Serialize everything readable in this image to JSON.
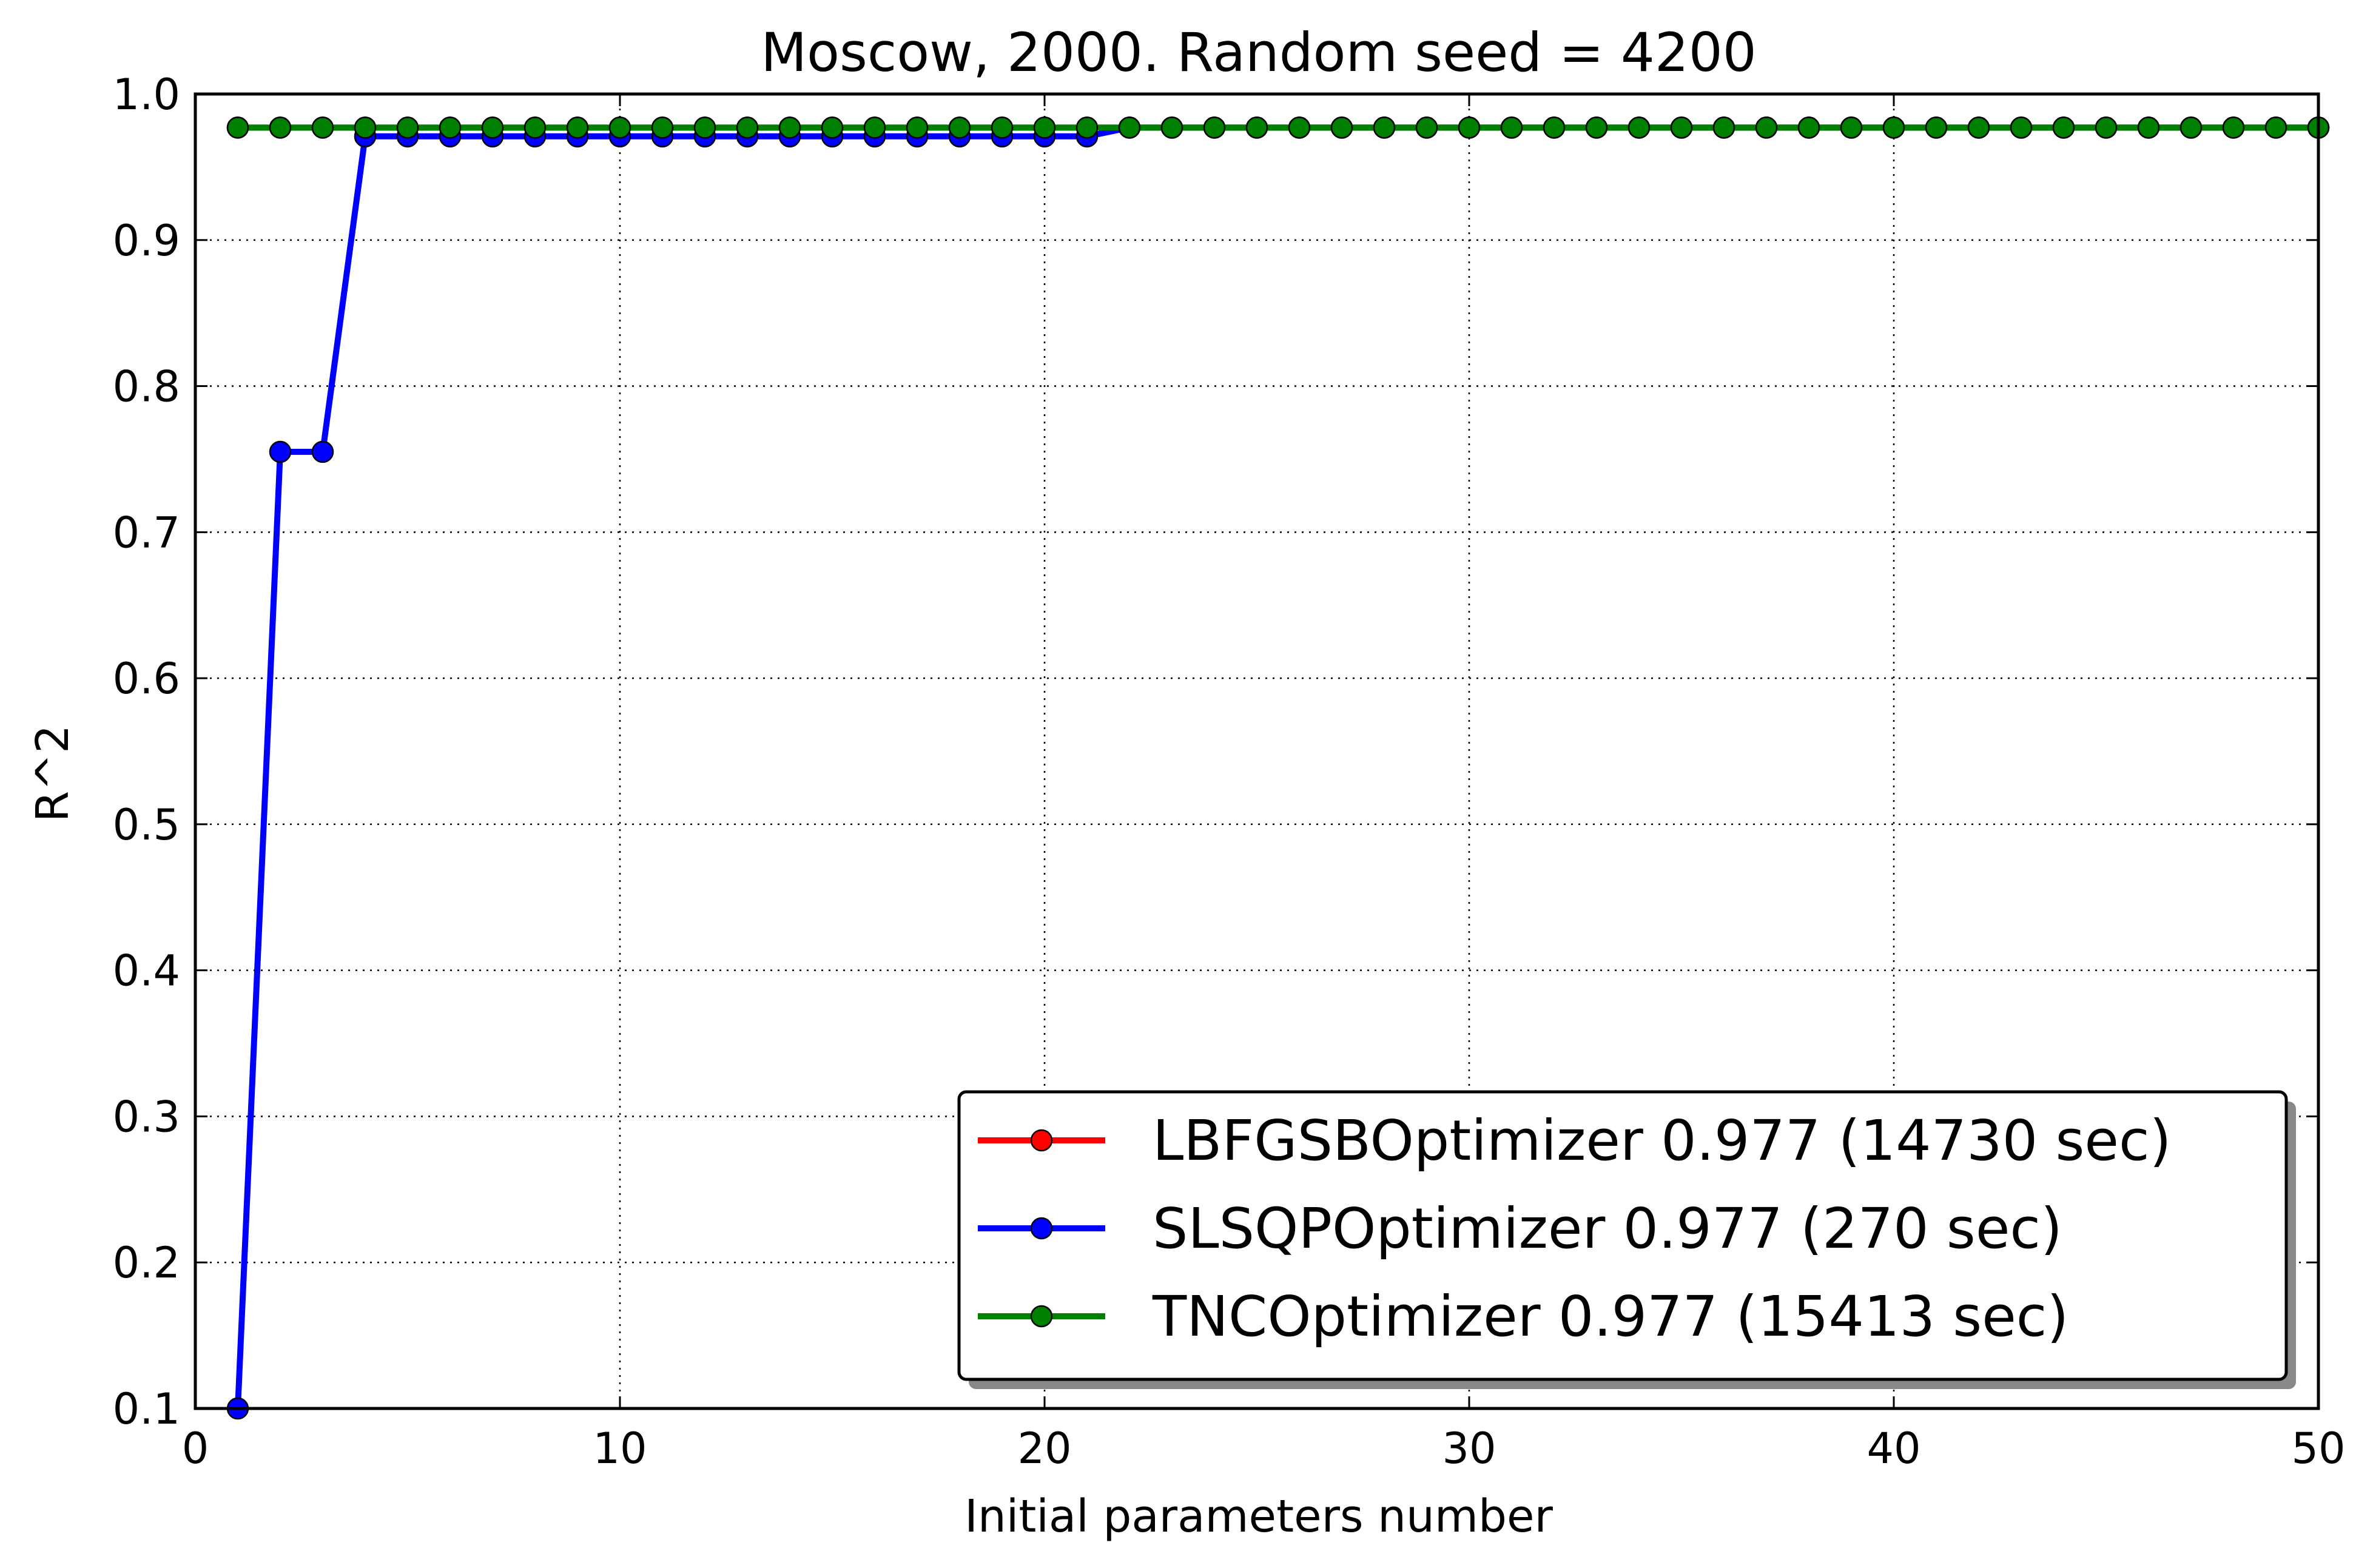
{
  "chart_data": {
    "type": "line",
    "title": "Moscow, 2000. Random seed = 4200",
    "xlabel": "Initial parameters number",
    "ylabel": "R^2",
    "xlim": [
      0,
      50
    ],
    "ylim": [
      0.1,
      1.0
    ],
    "xticks": [
      0,
      10,
      20,
      30,
      40,
      50
    ],
    "yticks": [
      0.1,
      0.2,
      0.3,
      0.4,
      0.5,
      0.6,
      0.7,
      0.8,
      0.9,
      1.0
    ],
    "grid": true,
    "legend_position": "lower-right",
    "x": [
      1,
      2,
      3,
      4,
      5,
      6,
      7,
      8,
      9,
      10,
      11,
      12,
      13,
      14,
      15,
      16,
      17,
      18,
      19,
      20,
      21,
      22,
      23,
      24,
      25,
      26,
      27,
      28,
      29,
      30,
      31,
      32,
      33,
      34,
      35,
      36,
      37,
      38,
      39,
      40,
      41,
      42,
      43,
      44,
      45,
      46,
      47,
      48,
      49,
      50
    ],
    "series": [
      {
        "name": "LBFGSBOptimizer 0.977 (14730 sec)",
        "color": "#ff0000",
        "values": [
          0.977,
          0.977,
          0.977,
          0.977,
          0.977,
          0.977,
          0.977,
          0.977,
          0.977,
          0.977,
          0.977,
          0.977,
          0.977,
          0.977,
          0.977,
          0.977,
          0.977,
          0.977,
          0.977,
          0.977,
          0.977,
          0.977,
          0.977,
          0.977,
          0.977,
          0.977,
          0.977,
          0.977,
          0.977,
          0.977,
          0.977,
          0.977,
          0.977,
          0.977,
          0.977,
          0.977,
          0.977,
          0.977,
          0.977,
          0.977,
          0.977,
          0.977,
          0.977,
          0.977,
          0.977,
          0.977,
          0.977,
          0.977,
          0.977,
          0.977
        ]
      },
      {
        "name": "SLSQPOptimizer 0.977 (270 sec)",
        "color": "#0000ff",
        "values": [
          0.1,
          0.755,
          0.755,
          0.971,
          0.971,
          0.971,
          0.971,
          0.971,
          0.971,
          0.971,
          0.971,
          0.971,
          0.971,
          0.971,
          0.971,
          0.971,
          0.971,
          0.971,
          0.971,
          0.971,
          0.971,
          0.977,
          0.977,
          0.977,
          0.977,
          0.977,
          0.977,
          0.977,
          0.977,
          0.977,
          0.977,
          0.977,
          0.977,
          0.977,
          0.977,
          0.977,
          0.977,
          0.977,
          0.977,
          0.977,
          0.977,
          0.977,
          0.977,
          0.977,
          0.977,
          0.977,
          0.977,
          0.977,
          0.977,
          0.977
        ]
      },
      {
        "name": "TNCOptimizer 0.977 (15413 sec)",
        "color": "#008000",
        "values": [
          0.977,
          0.977,
          0.977,
          0.977,
          0.977,
          0.977,
          0.977,
          0.977,
          0.977,
          0.977,
          0.977,
          0.977,
          0.977,
          0.977,
          0.977,
          0.977,
          0.977,
          0.977,
          0.977,
          0.977,
          0.977,
          0.977,
          0.977,
          0.977,
          0.977,
          0.977,
          0.977,
          0.977,
          0.977,
          0.977,
          0.977,
          0.977,
          0.977,
          0.977,
          0.977,
          0.977,
          0.977,
          0.977,
          0.977,
          0.977,
          0.977,
          0.977,
          0.977,
          0.977,
          0.977,
          0.977,
          0.977,
          0.977,
          0.977,
          0.977
        ]
      }
    ]
  }
}
